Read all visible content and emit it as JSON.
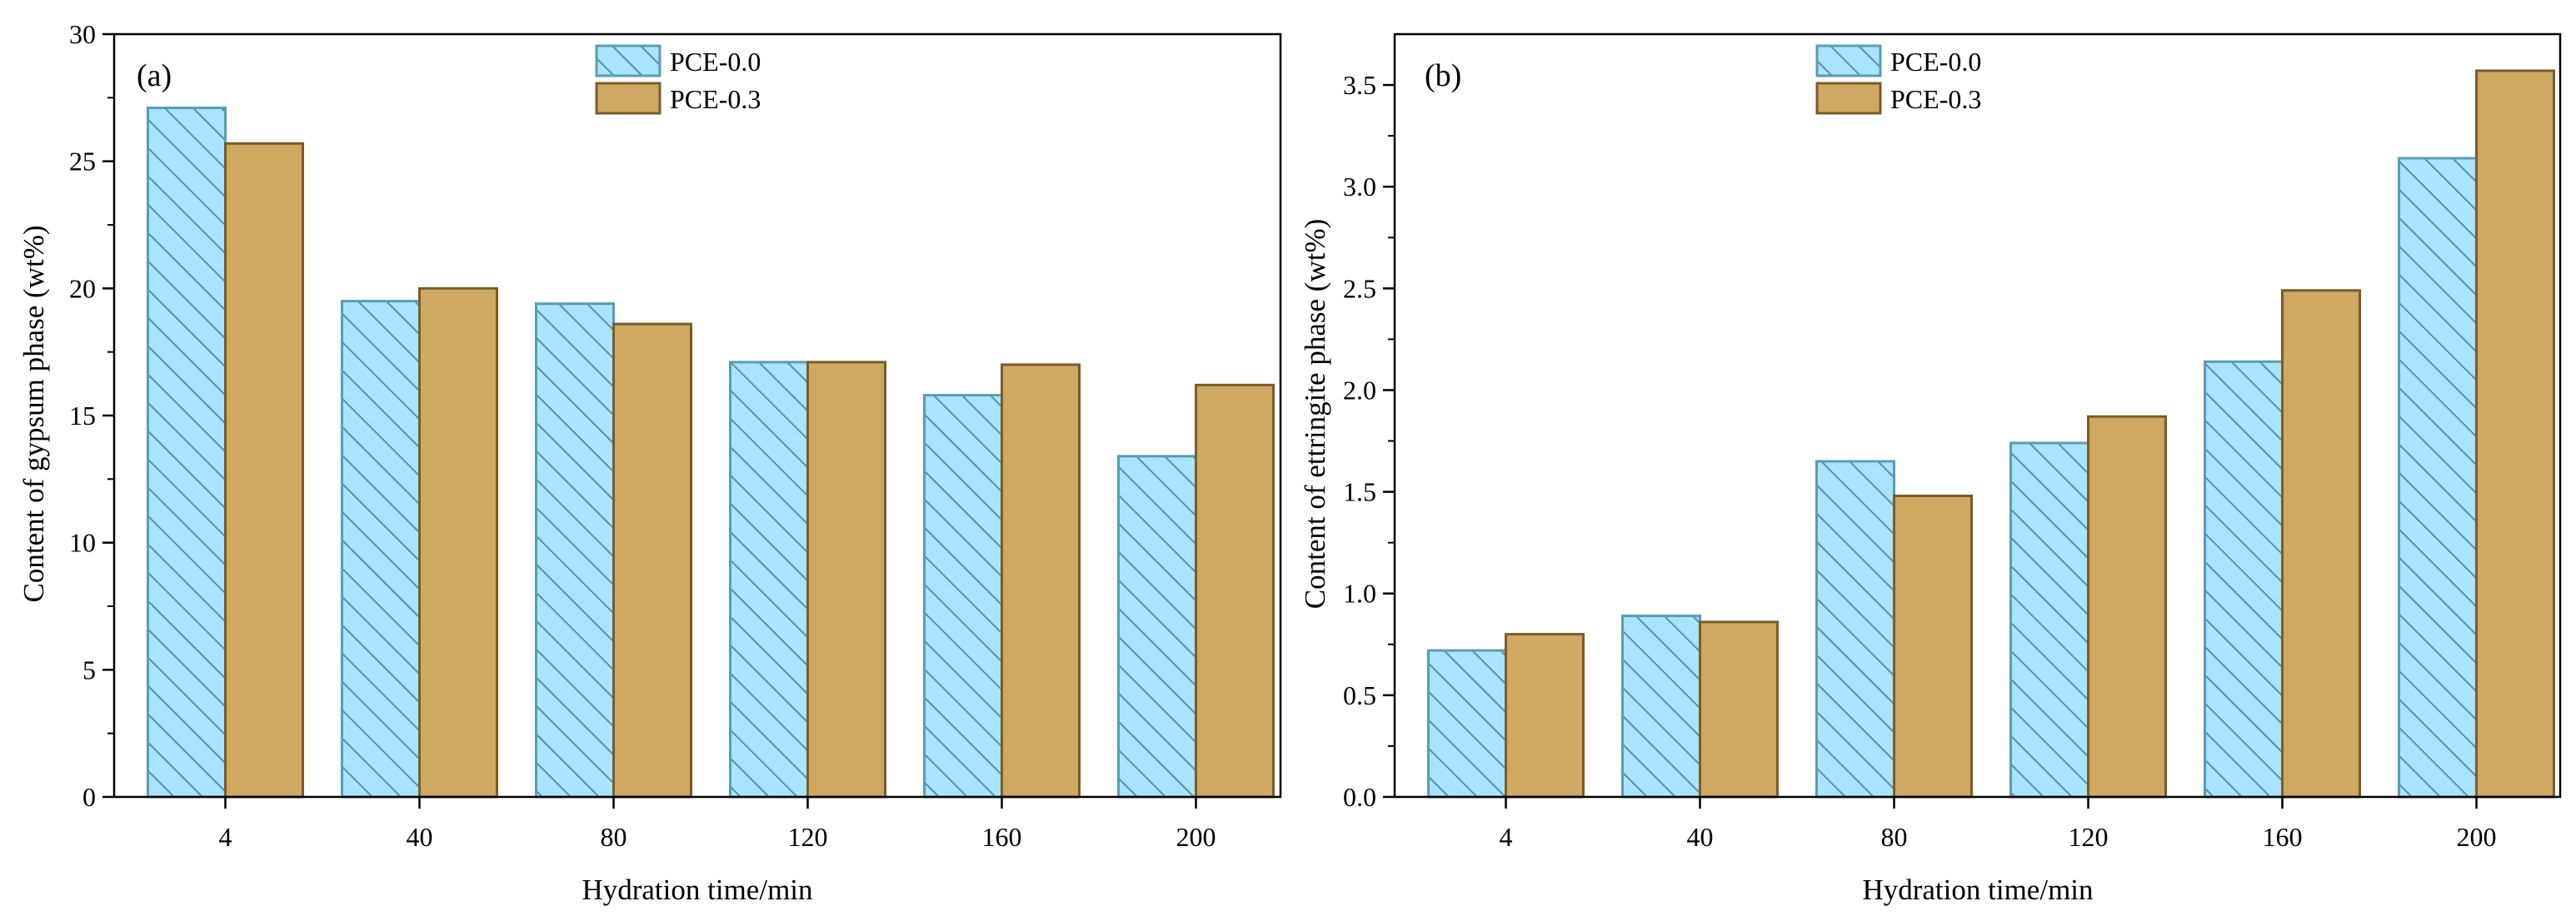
{
  "chart_data": [
    {
      "type": "bar",
      "panel_label": "(a)",
      "categories": [
        "4",
        "40",
        "80",
        "120",
        "160",
        "200"
      ],
      "series": [
        {
          "name": "PCE-0.0",
          "values": [
            27.1,
            19.5,
            19.4,
            17.1,
            15.8,
            13.4
          ]
        },
        {
          "name": "PCE-0.3",
          "values": [
            25.7,
            20.0,
            18.6,
            17.1,
            17.0,
            16.2
          ]
        }
      ],
      "xlabel": "Hydration time/min",
      "ylabel": "Content of gypsum phase (wt%)",
      "ylim": [
        0,
        30
      ],
      "yticks": [
        0,
        5,
        10,
        15,
        20,
        25,
        30
      ],
      "ytick_labels": [
        "0",
        "5",
        "10",
        "15",
        "20",
        "25",
        "30"
      ],
      "grid": false,
      "legend_position": "top-center"
    },
    {
      "type": "bar",
      "panel_label": "(b)",
      "categories": [
        "4",
        "40",
        "80",
        "120",
        "160",
        "200"
      ],
      "series": [
        {
          "name": "PCE-0.0",
          "values": [
            0.72,
            0.89,
            1.65,
            1.74,
            2.14,
            3.14
          ]
        },
        {
          "name": "PCE-0.3",
          "values": [
            0.8,
            0.86,
            1.48,
            1.87,
            2.49,
            3.57
          ]
        }
      ],
      "xlabel": "Hydration time/min",
      "ylabel": "Content of ettringite phase (wt%)",
      "ylim": [
        0,
        3.75
      ],
      "yticks": [
        0,
        0.5,
        1.0,
        1.5,
        2.0,
        2.5,
        3.0,
        3.5
      ],
      "ytick_labels": [
        "0.0",
        "0.5",
        "1.0",
        "1.5",
        "2.0",
        "2.5",
        "3.0",
        "3.5"
      ],
      "grid": false,
      "legend_position": "top-center"
    }
  ],
  "colors": {
    "PCE-0.0_fill": "#a8e4fb",
    "PCE-0.0_edge": "#5a9cb8",
    "PCE-0.0_hatch": "#5a8fa8",
    "PCE-0.3_fill": "#cfa862",
    "PCE-0.3_edge": "#7a5c2a",
    "axis": "#000000"
  }
}
